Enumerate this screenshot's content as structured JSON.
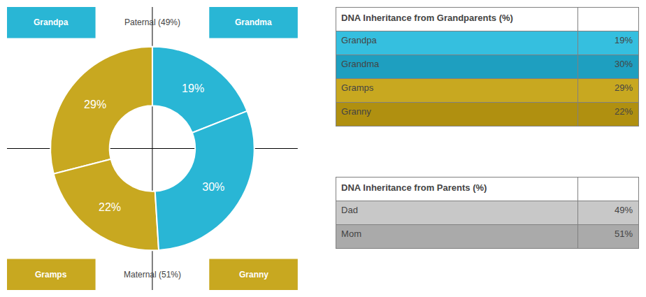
{
  "chart_data": [
    {
      "type": "pie",
      "categories": [
        "Grandpa",
        "Gramps",
        "Granny",
        "Grandma"
      ],
      "values": [
        19,
        29,
        22,
        30
      ],
      "value_labels": [
        "19%",
        "29%",
        "22%",
        "30%"
      ],
      "colors": [
        "#29b6d5",
        "#c8a820",
        "#c8a820",
        "#29b6d5"
      ],
      "data_labels": true,
      "annotations": [
        "Paternal (49%)",
        "Maternal (51%)"
      ]
    },
    {
      "type": "table",
      "title": "DNA Inheritance from Grandparents (%)",
      "categories": [
        "Grandpa",
        "Grandma",
        "Gramps",
        "Granny"
      ],
      "values": [
        19,
        30,
        29,
        22
      ],
      "value_labels": [
        "19%",
        "30%",
        "29%",
        "22%"
      ],
      "colors": [
        "#35bfdf",
        "#1e9fc0",
        "#c8a820",
        "#b09010"
      ]
    },
    {
      "type": "table",
      "title": "DNA Inheritance from Parents (%)",
      "categories": [
        "Dad",
        "Mom"
      ],
      "values": [
        49,
        51
      ],
      "value_labels": [
        "49%",
        "51%"
      ],
      "colors": [
        "#c8c8c8",
        "#aaaaaa"
      ]
    }
  ]
}
